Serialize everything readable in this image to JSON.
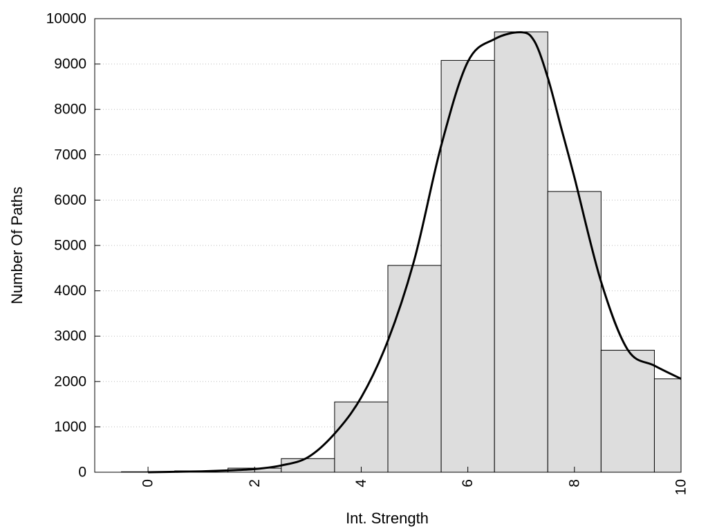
{
  "chart_data": {
    "type": "bar",
    "xlabel": "Int. Strength",
    "ylabel": "Number Of Paths",
    "xlim": [
      -1,
      10
    ],
    "ylim": [
      0,
      10000
    ],
    "x_ticks": [
      0,
      2,
      4,
      6,
      8,
      10
    ],
    "y_ticks": [
      0,
      1000,
      2000,
      3000,
      4000,
      5000,
      6000,
      7000,
      8000,
      9000,
      10000
    ],
    "grid": "horizontal dotted",
    "legend": "none",
    "bars": {
      "centers": [
        0,
        1,
        2,
        3,
        4,
        5,
        6,
        7,
        8,
        9,
        10
      ],
      "values": [
        10,
        30,
        90,
        300,
        1550,
        4560,
        9080,
        9710,
        6190,
        2690,
        2060
      ],
      "color": "#dddddd",
      "edge_color": "#000000"
    },
    "curve": {
      "x": [
        0,
        0.5,
        1,
        1.5,
        2,
        2.5,
        3,
        3.5,
        4,
        4.5,
        5,
        5.5,
        6,
        6.5,
        7,
        7.25,
        7.5,
        7.75,
        8,
        8.5,
        9,
        9.5,
        10
      ],
      "y": [
        0,
        10,
        20,
        40,
        70,
        150,
        330,
        850,
        1650,
        2900,
        4700,
        7200,
        9050,
        9550,
        9700,
        9500,
        8700,
        7600,
        6500,
        4200,
        2700,
        2350,
        2060
      ],
      "color": "#000000"
    }
  }
}
